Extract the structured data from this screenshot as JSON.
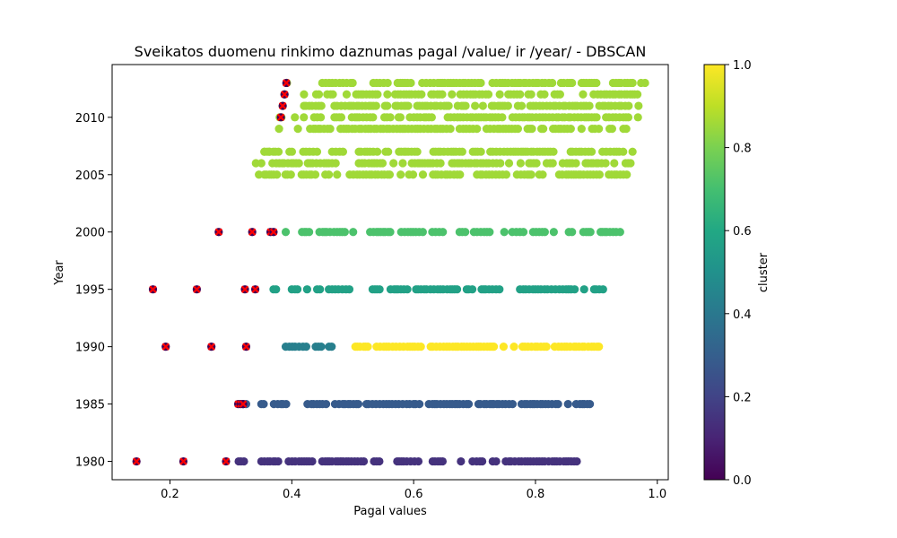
{
  "chart_data": {
    "type": "scatter",
    "title": "Sveikatos duomenu rinkimo daznumas pagal /value/ ir /year/ - DBSCAN",
    "xlabel": "Pagal values",
    "ylabel": "Year",
    "xlim": [
      0.105,
      1.018
    ],
    "ylim": [
      1978.4,
      2014.6
    ],
    "x_ticks": [
      "0.2",
      "0.4",
      "0.6",
      "0.8",
      "1.0"
    ],
    "x_tick_values": [
      0.2,
      0.4,
      0.6,
      0.8,
      1.0
    ],
    "y_ticks": [
      "1980",
      "1985",
      "1990",
      "1995",
      "2000",
      "2005",
      "2010"
    ],
    "y_tick_values": [
      1980,
      1985,
      1990,
      1995,
      2000,
      2005,
      2010
    ],
    "grid": false,
    "colorbar": {
      "label": "cluster",
      "colormap": "viridis",
      "range": [
        0,
        1
      ],
      "ticks": [
        "0.0",
        "0.2",
        "0.4",
        "0.6",
        "0.8",
        "1.0"
      ],
      "tick_values": [
        0,
        0.2,
        0.4,
        0.6,
        0.8,
        1.0
      ]
    },
    "noise_marker_color": "#ff0000",
    "rows": [
      {
        "year": 1980,
        "cluster": 0.143,
        "segments": [
          [
            0.3,
            0.325
          ],
          [
            0.35,
            0.52
          ],
          [
            0.535,
            0.87
          ]
        ],
        "noise": [
          0.145,
          0.222,
          0.292
        ]
      },
      {
        "year": 1985,
        "cluster": 0.286,
        "segments": [
          [
            0.32,
            0.33
          ],
          [
            0.35,
            0.61
          ],
          [
            0.625,
            0.89
          ]
        ],
        "noise": [
          0.312,
          0.316,
          0.32
        ]
      },
      {
        "year": 1990,
        "cluster": 0.429,
        "segments": [
          [
            0.365,
            0.375
          ],
          [
            0.39,
            0.48
          ]
        ],
        "noise": [
          0.193,
          0.268,
          0.325
        ]
      },
      {
        "year": 1990,
        "cluster": 1.0,
        "segments": [
          [
            0.492,
            0.905
          ]
        ],
        "noise": []
      },
      {
        "year": 1995,
        "cluster": 0.571,
        "segments": [
          [
            0.37,
            0.375
          ],
          [
            0.4,
            0.92
          ]
        ],
        "noise": [
          0.172,
          0.244,
          0.323,
          0.34
        ]
      },
      {
        "year": 2000,
        "cluster": 0.714,
        "segments": [
          [
            0.39,
            0.94
          ]
        ],
        "noise": [
          0.28,
          0.335,
          0.365,
          0.37
        ]
      },
      {
        "year": 2005,
        "cluster": 0.857,
        "segments": [
          [
            0.355,
            0.48
          ],
          [
            0.495,
            0.955
          ]
        ],
        "noise": []
      },
      {
        "year": 2006,
        "cluster": 0.857,
        "segments": [
          [
            0.35,
            0.49
          ],
          [
            0.51,
            0.96
          ]
        ],
        "noise": []
      },
      {
        "year": 2007,
        "cluster": 0.857,
        "segments": [
          [
            0.355,
            0.49
          ],
          [
            0.51,
            0.965
          ]
        ],
        "noise": []
      },
      {
        "year": 2009,
        "cluster": 0.857,
        "segments": [
          [
            0.43,
            0.47
          ],
          [
            0.48,
            0.95
          ]
        ],
        "noise": []
      },
      {
        "year": 2010,
        "cluster": 0.857,
        "segments": [
          [
            0.41,
            0.45
          ],
          [
            0.47,
            0.97
          ]
        ],
        "noise": []
      },
      {
        "year": 2011,
        "cluster": 0.857,
        "segments": [
          [
            0.42,
            0.45
          ],
          [
            0.47,
            0.97
          ]
        ],
        "noise": []
      },
      {
        "year": 2012,
        "cluster": 0.857,
        "segments": [
          [
            0.44,
            0.47
          ],
          [
            0.49,
            0.97
          ]
        ],
        "noise": []
      },
      {
        "year": 2013,
        "cluster": 0.857,
        "segments": [
          [
            0.45,
            0.5
          ],
          [
            0.51,
            0.98
          ]
        ],
        "noise": []
      }
    ],
    "sparse_points": [
      {
        "x": 0.346,
        "y": 2005,
        "cluster": 0.857
      },
      {
        "x": 0.341,
        "y": 2006,
        "cluster": 0.857
      },
      {
        "x": 0.363,
        "y": 2007,
        "cluster": 0.857
      },
      {
        "x": 0.355,
        "y": 2007,
        "cluster": 0.857
      },
      {
        "x": 0.41,
        "y": 2009,
        "cluster": 0.857
      },
      {
        "x": 0.405,
        "y": 2010,
        "cluster": 0.857
      },
      {
        "x": 0.42,
        "y": 2012,
        "cluster": 0.857
      },
      {
        "x": 0.38,
        "y": 2010,
        "cluster": 0.857
      },
      {
        "x": 0.383,
        "y": 2010,
        "cluster": 0.857
      },
      {
        "x": 0.385,
        "y": 2011,
        "cluster": 0.857
      },
      {
        "x": 0.388,
        "y": 2012,
        "cluster": 0.857
      },
      {
        "x": 0.392,
        "y": 2013,
        "cluster": 0.857
      },
      {
        "x": 0.379,
        "y": 2009,
        "cluster": 0.857
      }
    ],
    "sparse_noise": [
      {
        "x": 0.382,
        "y": 2010
      },
      {
        "x": 0.385,
        "y": 2011
      },
      {
        "x": 0.388,
        "y": 2012
      },
      {
        "x": 0.391,
        "y": 2013
      }
    ]
  }
}
